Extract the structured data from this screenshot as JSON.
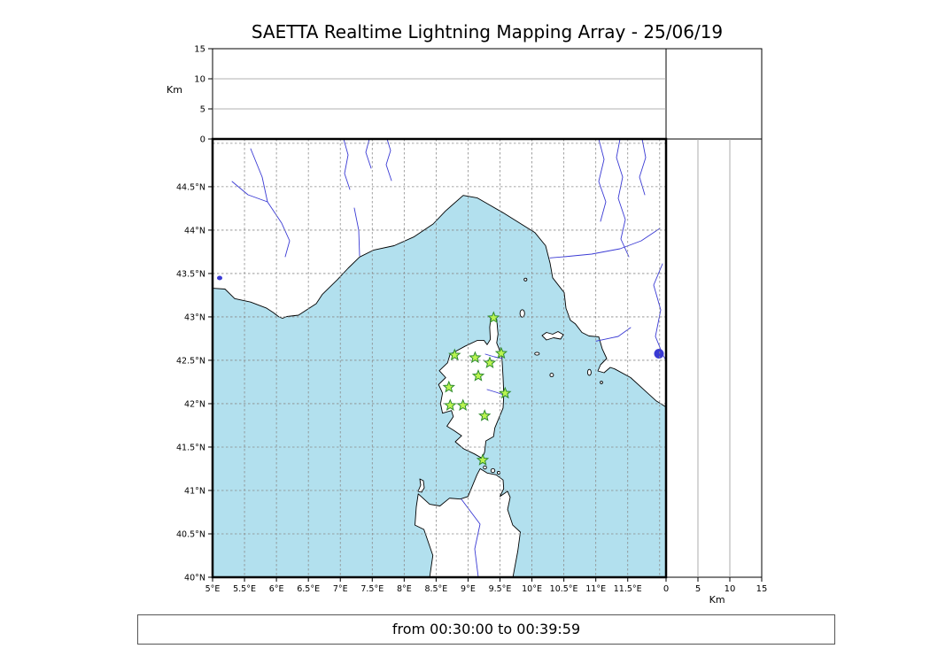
{
  "title": "SAETTA Realtime Lightning Mapping Array - 25/06/19",
  "footer": {
    "text": "from 00:30:00 to 00:39:59"
  },
  "colors": {
    "sea": "#b2e0ee",
    "land": "#ffffff",
    "river": "#3a3ad4",
    "grid": "#8a8a8a",
    "station_fill": "#baf450",
    "station_stroke": "#2e8b2e",
    "lake": "#3a3ad4",
    "frame": "#000000"
  },
  "chart_data": {
    "type": "scatter",
    "title": "SAETTA Realtime Lightning Mapping Array - 25/06/19",
    "time_window": "from 00:30:00 to 00:39:59",
    "map_panel": {
      "lon_range": [
        5.0,
        12.1
      ],
      "lat_range": [
        40.0,
        45.05
      ],
      "lon_ticks": [
        5,
        5.5,
        6,
        6.5,
        7,
        7.5,
        8,
        8.5,
        9,
        9.5,
        10,
        10.5,
        11,
        11.5
      ],
      "lon_tick_labels": [
        "5°E",
        "5.5°E",
        "6°E",
        "6.5°E",
        "7°E",
        "7.5°E",
        "8°E",
        "8.5°E",
        "9°E",
        "9.5°E",
        "10°E",
        "10.5°E",
        "11°E",
        "11.5°E"
      ],
      "lat_ticks": [
        40,
        40.5,
        41,
        41.5,
        42,
        42.5,
        43,
        43.5,
        44,
        44.5
      ],
      "lat_tick_labels": [
        "40°N",
        "40.5°N",
        "41°N",
        "41.5°N",
        "42°N",
        "42.5°N",
        "43°N",
        "43.5°N",
        "44°N",
        "44.5°N"
      ],
      "lon_grid_extra": [
        12.0
      ],
      "lat_grid_extra": [
        45.0
      ],
      "grid_style": "dashed"
    },
    "altitude_panels": {
      "unit": "Km",
      "range": [
        0,
        15
      ],
      "ticks": [
        0,
        5,
        10,
        15
      ],
      "tick_labels": [
        "0",
        "5",
        "10",
        "15"
      ],
      "grid_lines_km": [
        5,
        10
      ]
    },
    "stations": [
      {
        "lon": 9.4,
        "lat": 42.99
      },
      {
        "lon": 8.79,
        "lat": 42.56
      },
      {
        "lon": 9.11,
        "lat": 42.53
      },
      {
        "lon": 9.34,
        "lat": 42.47
      },
      {
        "lon": 9.52,
        "lat": 42.58
      },
      {
        "lon": 9.16,
        "lat": 42.32
      },
      {
        "lon": 8.7,
        "lat": 42.19
      },
      {
        "lon": 9.58,
        "lat": 42.12
      },
      {
        "lon": 8.72,
        "lat": 41.98
      },
      {
        "lon": 8.92,
        "lat": 41.98
      },
      {
        "lon": 9.26,
        "lat": 41.86
      },
      {
        "lon": 9.23,
        "lat": 41.35
      }
    ],
    "lightning_sources": []
  }
}
